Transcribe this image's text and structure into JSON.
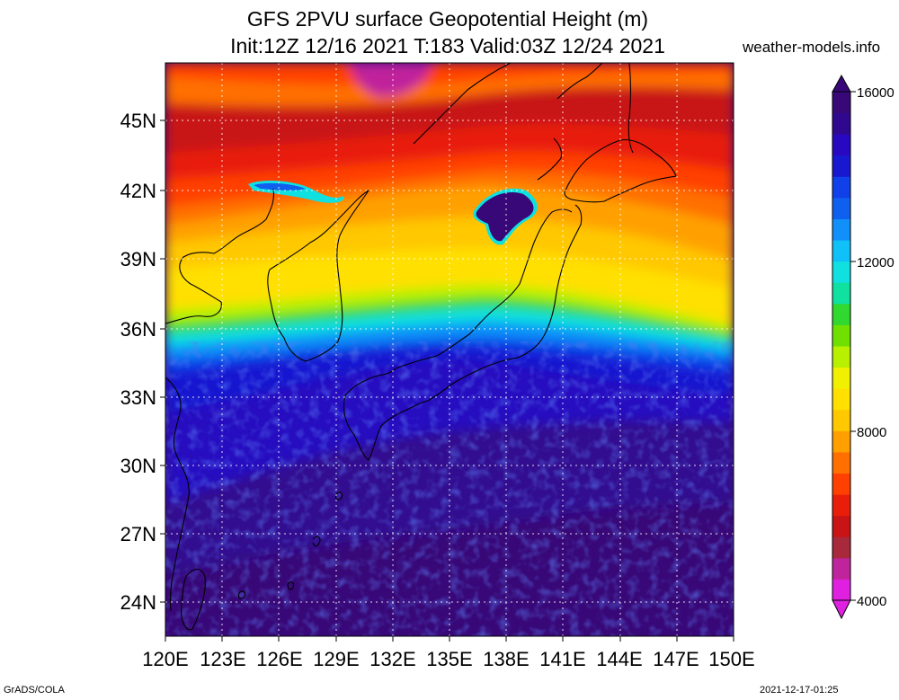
{
  "header": {
    "title_line1": "GFS 2PVU surface Geopotential Height (m)",
    "title_line2": "Init:12Z 12/16 2021 T:183 Valid:03Z 12/24 2021",
    "site": "weather-models.info"
  },
  "footer": {
    "left": "GrADS/COLA",
    "right": "2021-12-17-01:25"
  },
  "map": {
    "lon_range": [
      120,
      150
    ],
    "lat_range": [
      22.5,
      48
    ],
    "lon_ticks": [
      "120E",
      "123E",
      "126E",
      "129E",
      "132E",
      "135E",
      "138E",
      "141E",
      "144E",
      "147E",
      "150E"
    ],
    "lat_ticks": [
      "24N",
      "27N",
      "30N",
      "33N",
      "36N",
      "39N",
      "42N",
      "45N"
    ],
    "grid_lines": "dotted"
  },
  "colorbar": {
    "min": 4000,
    "max": 16000,
    "labels": [
      "4000",
      "8000",
      "12000",
      "16000"
    ],
    "colors": [
      "#e020e0",
      "#c0249c",
      "#a8283c",
      "#c81414",
      "#e81e0a",
      "#ff4000",
      "#ff7000",
      "#ffa000",
      "#ffc800",
      "#ffe000",
      "#f0f000",
      "#b8f000",
      "#70e000",
      "#30d830",
      "#10e0a0",
      "#10e0e0",
      "#10c0f8",
      "#1090f8",
      "#1060f0",
      "#1040e8",
      "#1818d0",
      "#2808c0",
      "#300890",
      "#380878"
    ]
  }
}
